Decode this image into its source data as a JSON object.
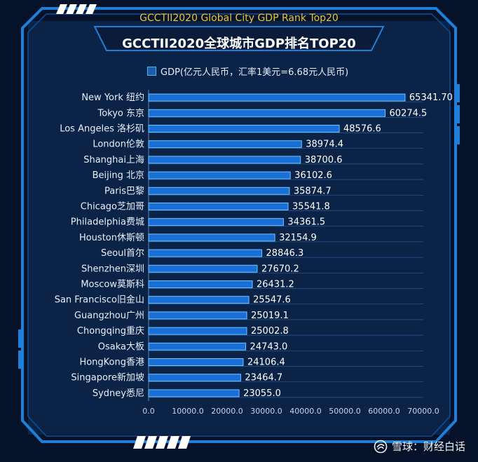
{
  "header": {
    "top_title": "GCCTII2020 Global City GDP Rank Top20",
    "main_title": "GCCTII2020全球城市GDP排名TOP20"
  },
  "watermark": {
    "text": "雪球：财经白话",
    "icon": "snowball-logo-icon"
  },
  "colors": {
    "bar_fill": "#1a6fd6",
    "bar_edge": "#6fc4ff",
    "background": "#06122a",
    "frame": "#1f7fd8",
    "top_title": "#e9c43a"
  },
  "chart_data": {
    "type": "bar",
    "orientation": "horizontal",
    "title": "GCCTII2020全球城市GDP排名TOP20",
    "legend": {
      "position": "top",
      "entries": [
        "GDP(亿元人民币，汇率1美元=6.68元人民币)"
      ]
    },
    "categories": [
      "New York 纽约",
      "Tokyo 东京",
      "Los Angeles 洛杉矶",
      "London伦敦",
      "Shanghai上海",
      "Beijing 北京",
      "Paris巴黎",
      "Chicago芝加哥",
      "Philadelphia费城",
      "Houston休斯顿",
      "Seoul首尔",
      "Shenzhen深圳",
      "Moscow莫斯科",
      "San Francisco旧金山",
      "Guangzhou广州",
      "Chongqing重庆",
      "Osaka大板",
      "HongKong香港",
      "Singapore新加坡",
      "Sydney悉尼"
    ],
    "series": [
      {
        "name": "GDP(亿元人民币，汇率1美元=6.68元人民币)",
        "values": [
          65341.7,
          60274.5,
          48576.6,
          38974.4,
          38700.6,
          36102.6,
          35874.7,
          35541.8,
          34361.5,
          32154.9,
          28846.3,
          27670.2,
          26431.2,
          25547.6,
          25019.1,
          25002.8,
          24743.0,
          24106.4,
          23464.7,
          23055.0
        ]
      }
    ],
    "value_labels": [
      "65341.70",
      "60274.5",
      "48576.6",
      "38974.4",
      "38700.6",
      "36102.6",
      "35874.7",
      "35541.8",
      "34361.5",
      "32154.9",
      "28846.3",
      "27670.2",
      "26431.2",
      "25547.6",
      "25019.1",
      "25002.8",
      "24743.0",
      "24106.4",
      "23464.7",
      "23055.0"
    ],
    "x_ticks": [
      "0.0",
      "10000.0",
      "20000.0",
      "30000.0",
      "40000.0",
      "50000.0",
      "60000.0",
      "70000.0"
    ],
    "xlim": [
      0,
      70000
    ],
    "grid": true
  }
}
